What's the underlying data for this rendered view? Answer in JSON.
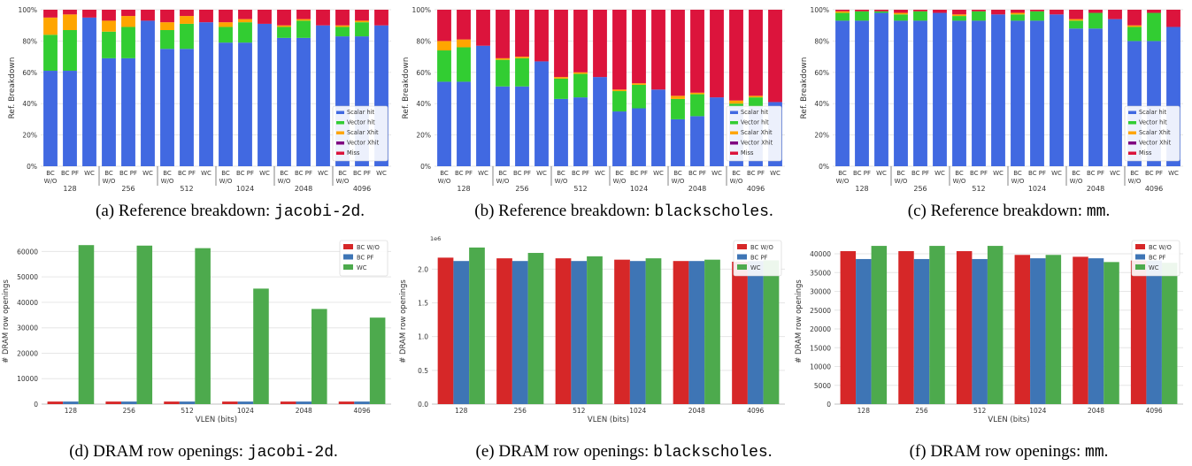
{
  "colors": {
    "scalar_hit": "#4169e1",
    "vector_hit": "#32cd32",
    "scalar_xhit": "#ffa500",
    "vector_xhit": "#800080",
    "miss": "#dc143c",
    "bc_wo": "#d62728",
    "bc_pf": "#3e75b5",
    "wc": "#4daa4d",
    "grid": "#e6e6e6"
  },
  "captions": [
    {
      "prefix": "(a) Reference breakdown: ",
      "mono": "jacobi-2d",
      "suffix": "."
    },
    {
      "prefix": "(b) Reference breakdown: ",
      "mono": "blackscholes",
      "suffix": "."
    },
    {
      "prefix": "(c) Reference breakdown: ",
      "mono": "mm",
      "suffix": "."
    },
    {
      "prefix": "(d) DRAM row openings: ",
      "mono": "jacobi-2d",
      "suffix": "."
    },
    {
      "prefix": "(e) DRAM row openings: ",
      "mono": "blackscholes",
      "suffix": "."
    },
    {
      "prefix": "(f) DRAM row openings: ",
      "mono": "mm",
      "suffix": "."
    }
  ],
  "chart_data": [
    {
      "type": "bar",
      "stacked": true,
      "ylabel": "Ref. Breakdown",
      "yticks": [
        "0%",
        "20%",
        "40%",
        "60%",
        "80%",
        "100%"
      ],
      "bar_labels": [
        "BC\nW/O",
        "BC PF",
        "WC"
      ],
      "groups": [
        "128",
        "256",
        "512",
        "1024",
        "2048",
        "4096"
      ],
      "legend": [
        "Scalar hit",
        "Vector hit",
        "Scalar Xhit",
        "Vector Xhit",
        "Miss"
      ],
      "legend_position": "bottom-right",
      "segments": [
        [
          61,
          23,
          11,
          0,
          5
        ],
        [
          61,
          26,
          10,
          0,
          3
        ],
        [
          95,
          0,
          0,
          0,
          5
        ],
        [
          69,
          17,
          7,
          0,
          7
        ],
        [
          69,
          20,
          7,
          0,
          4
        ],
        [
          93,
          0,
          0,
          0,
          7
        ],
        [
          75,
          12,
          5,
          0,
          8
        ],
        [
          75,
          16,
          5,
          0,
          4
        ],
        [
          92,
          0,
          0,
          0,
          8
        ],
        [
          79,
          10,
          3,
          0,
          8
        ],
        [
          79,
          13,
          2,
          0,
          6
        ],
        [
          91,
          0,
          0,
          0,
          9
        ],
        [
          82,
          7,
          1,
          0,
          10
        ],
        [
          82,
          11,
          1,
          0,
          6
        ],
        [
          90,
          0,
          0,
          0,
          10
        ],
        [
          83,
          6,
          1,
          0,
          10
        ],
        [
          83,
          9,
          1,
          0,
          7
        ],
        [
          90,
          0,
          0,
          0,
          10
        ]
      ]
    },
    {
      "type": "bar",
      "stacked": true,
      "ylabel": "Ref. Breakdown",
      "yticks": [
        "0%",
        "20%",
        "40%",
        "60%",
        "80%",
        "100%"
      ],
      "bar_labels": [
        "BC\nW/O",
        "BC PF",
        "WC"
      ],
      "groups": [
        "128",
        "256",
        "512",
        "1024",
        "2048",
        "4096"
      ],
      "legend": [
        "Scalar hit",
        "Vector hit",
        "Scalar Xhit",
        "Vector Xhit",
        "Miss"
      ],
      "legend_position": "bottom-right",
      "segments": [
        [
          54,
          20,
          6,
          0,
          20
        ],
        [
          54,
          22,
          5,
          0,
          19
        ],
        [
          77,
          0,
          0,
          0,
          23
        ],
        [
          51,
          17,
          1,
          0,
          31
        ],
        [
          51,
          18,
          1,
          0,
          30
        ],
        [
          67,
          0,
          0,
          0,
          33
        ],
        [
          43,
          13,
          1,
          0,
          43
        ],
        [
          44,
          15,
          1,
          0,
          40
        ],
        [
          57,
          0,
          0,
          0,
          43
        ],
        [
          35,
          13,
          1,
          0,
          51
        ],
        [
          37,
          15,
          1,
          0,
          47
        ],
        [
          49,
          0,
          0,
          0,
          51
        ],
        [
          30,
          13,
          2,
          0,
          55
        ],
        [
          32,
          14,
          1,
          0,
          53
        ],
        [
          44,
          0,
          0,
          0,
          56
        ],
        [
          38,
          2,
          2,
          0,
          58
        ],
        [
          38,
          6,
          1,
          0,
          55
        ],
        [
          41,
          0,
          0,
          0,
          59
        ]
      ]
    },
    {
      "type": "bar",
      "stacked": true,
      "ylabel": "Ref. Breakdown",
      "yticks": [
        "0%",
        "20%",
        "40%",
        "60%",
        "80%",
        "100%"
      ],
      "bar_labels": [
        "BC\nW/O",
        "BC PF",
        "WC"
      ],
      "groups": [
        "128",
        "256",
        "512",
        "1024",
        "2048",
        "4096"
      ],
      "legend": [
        "Scalar hit",
        "Vector hit",
        "Scalar Xhit",
        "Vector Xhit",
        "Miss"
      ],
      "legend_position": "bottom-right",
      "segments": [
        [
          93,
          5,
          1,
          0,
          1
        ],
        [
          93,
          6,
          0,
          0,
          1
        ],
        [
          98,
          1,
          0,
          0,
          1
        ],
        [
          93,
          4,
          1,
          0,
          2
        ],
        [
          93,
          6,
          0,
          0,
          1
        ],
        [
          98,
          0,
          0,
          0,
          2
        ],
        [
          93,
          3,
          1,
          0,
          3
        ],
        [
          93,
          6,
          0,
          0,
          1
        ],
        [
          97,
          0,
          0,
          0,
          3
        ],
        [
          93,
          4,
          1,
          0,
          2
        ],
        [
          93,
          6,
          0,
          0,
          1
        ],
        [
          97,
          0,
          0,
          0,
          3
        ],
        [
          88,
          5,
          1,
          0,
          6
        ],
        [
          88,
          10,
          0,
          0,
          2
        ],
        [
          94,
          0,
          0,
          0,
          6
        ],
        [
          80,
          9,
          1,
          0,
          10
        ],
        [
          80,
          18,
          0,
          0,
          2
        ],
        [
          89,
          0,
          0,
          0,
          11
        ]
      ]
    },
    {
      "type": "bar",
      "ylabel": "# DRAM row openings",
      "xlabel": "VLEN (bits)",
      "categories": [
        "128",
        "256",
        "512",
        "1024",
        "2048",
        "4096"
      ],
      "ylim": [
        0,
        65000
      ],
      "yticks": [
        0,
        10000,
        20000,
        30000,
        40000,
        50000,
        60000
      ],
      "ytick_labels": [
        "0",
        "10000",
        "20000",
        "30000",
        "40000",
        "50000",
        "60000"
      ],
      "legend_position": "top-right",
      "series": [
        {
          "name": "BC W/O",
          "values": [
            1000,
            1000,
            1000,
            1000,
            1000,
            1000
          ]
        },
        {
          "name": "BC PF",
          "values": [
            1000,
            1000,
            1000,
            1000,
            1000,
            1000
          ]
        },
        {
          "name": "WC",
          "values": [
            62500,
            62300,
            61300,
            45400,
            37400,
            34000
          ]
        }
      ]
    },
    {
      "type": "bar",
      "ylabel": "# DRAM row openings",
      "xlabel": "VLEN (bits)",
      "offset_label": "1e6",
      "categories": [
        "128",
        "256",
        "512",
        "1024",
        "2048",
        "4096"
      ],
      "ylim": [
        0,
        2.45
      ],
      "yticks": [
        0,
        0.5,
        1.0,
        1.5,
        2.0
      ],
      "ytick_labels": [
        "0.0",
        "0.5",
        "1.0",
        "1.5",
        "2.0"
      ],
      "legend_position": "top-right",
      "series": [
        {
          "name": "BC W/O",
          "values": [
            2.17,
            2.16,
            2.16,
            2.14,
            2.12,
            2.11
          ]
        },
        {
          "name": "BC PF",
          "values": [
            2.12,
            2.12,
            2.12,
            2.12,
            2.12,
            2.12
          ]
        },
        {
          "name": "WC",
          "values": [
            2.32,
            2.24,
            2.19,
            2.16,
            2.14,
            2.13
          ]
        }
      ]
    },
    {
      "type": "bar",
      "ylabel": "# DRAM row openings",
      "xlabel": "VLEN (bits)",
      "categories": [
        "128",
        "256",
        "512",
        "1024",
        "2048",
        "4096"
      ],
      "ylim": [
        0,
        44000
      ],
      "yticks": [
        0,
        5000,
        10000,
        15000,
        20000,
        25000,
        30000,
        35000,
        40000
      ],
      "ytick_labels": [
        "0",
        "5000",
        "10000",
        "15000",
        "20000",
        "25000",
        "30000",
        "35000",
        "40000"
      ],
      "legend_position": "top-right",
      "series": [
        {
          "name": "BC W/O",
          "values": [
            40700,
            40700,
            40700,
            39700,
            39200,
            38200
          ]
        },
        {
          "name": "BC PF",
          "values": [
            38600,
            38600,
            38600,
            38800,
            38800,
            38200
          ]
        },
        {
          "name": "WC",
          "values": [
            42100,
            42100,
            42100,
            39700,
            37800,
            37600
          ]
        }
      ]
    }
  ]
}
